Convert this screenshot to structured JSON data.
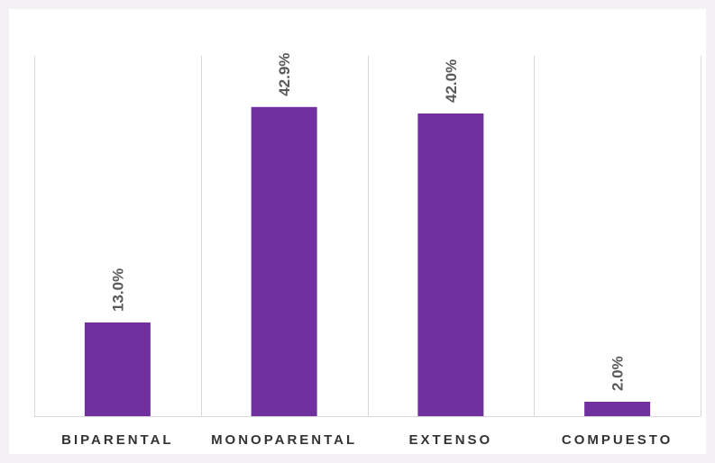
{
  "colors": {
    "bar": "#7030a0",
    "grid": "#d9d9d9",
    "label": "#595959",
    "tick": "#333333",
    "background": "#ffffff"
  },
  "chart_data": {
    "type": "bar",
    "categories": [
      "BIPARENTAL",
      "MONOPARENTAL",
      "EXTENSO",
      "COMPUESTO"
    ],
    "values": [
      13.0,
      42.9,
      42.0,
      2.0
    ],
    "data_labels": [
      "13.0%",
      "42.9%",
      "42.0%",
      "2.0%"
    ],
    "ylim": [
      0,
      50
    ],
    "grid": "vertical category separators",
    "legend": "none",
    "data_label_orientation": "rotated vertical"
  }
}
